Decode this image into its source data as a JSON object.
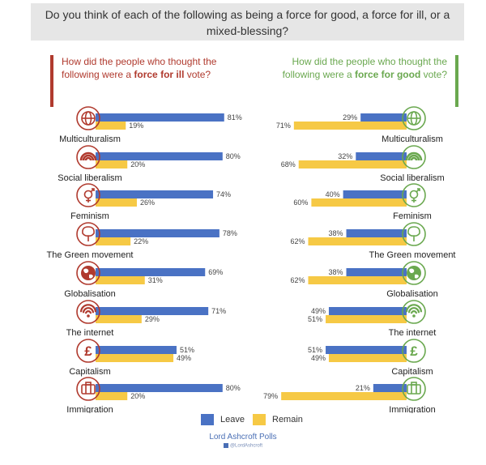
{
  "header": {
    "question": "Do you think of each of the following as being a force for good, a force for ill, or a mixed-blessing?"
  },
  "left_panel": {
    "q_pre": "How did the people who thought the following were a ",
    "q_bold": "force for ill",
    "q_post": " vote?"
  },
  "right_panel": {
    "q_pre": "How did the people who thought the following were a ",
    "q_bold": "force for good",
    "q_post": " vote?"
  },
  "colors": {
    "leave": "#4a72c4",
    "remain": "#f6c945",
    "ill": "#b03a2e",
    "good": "#6aa84f"
  },
  "legend": {
    "leave": "Leave",
    "remain": "Remain"
  },
  "footer": {
    "title": "Lord Ashcroft Polls",
    "handle": "@LordAshcroft"
  },
  "chart_data": [
    {
      "type": "bar",
      "title": "force for ill",
      "categories": [
        "Multiculturalism",
        "Social liberalism",
        "Feminism",
        "The Green movement",
        "Globalisation",
        "The internet",
        "Capitalism",
        "Immigration"
      ],
      "icons": [
        "globe-icon",
        "rainbow-icon",
        "gender-symbol-icon",
        "tree-icon",
        "earth-icon",
        "wifi-icon",
        "pound-icon",
        "suitcase-icon"
      ],
      "series": [
        {
          "name": "Leave",
          "values": [
            81,
            80,
            74,
            78,
            69,
            71,
            51,
            80
          ]
        },
        {
          "name": "Remain",
          "values": [
            19,
            20,
            26,
            22,
            31,
            29,
            49,
            20
          ]
        }
      ],
      "unit": "%",
      "ylim": [
        0,
        100
      ]
    },
    {
      "type": "bar",
      "title": "force for good",
      "categories": [
        "Multiculturalism",
        "Social liberalism",
        "Feminism",
        "The Green movement",
        "Globalisation",
        "The internet",
        "Capitalism",
        "Immigration"
      ],
      "icons": [
        "globe-icon",
        "rainbow-icon",
        "gender-symbol-icon",
        "tree-icon",
        "earth-icon",
        "wifi-icon",
        "pound-icon",
        "suitcase-icon"
      ],
      "series": [
        {
          "name": "Leave",
          "values": [
            29,
            32,
            40,
            38,
            38,
            49,
            51,
            21
          ]
        },
        {
          "name": "Remain",
          "values": [
            71,
            68,
            60,
            62,
            62,
            51,
            49,
            79
          ]
        }
      ],
      "unit": "%",
      "ylim": [
        0,
        100
      ]
    }
  ]
}
